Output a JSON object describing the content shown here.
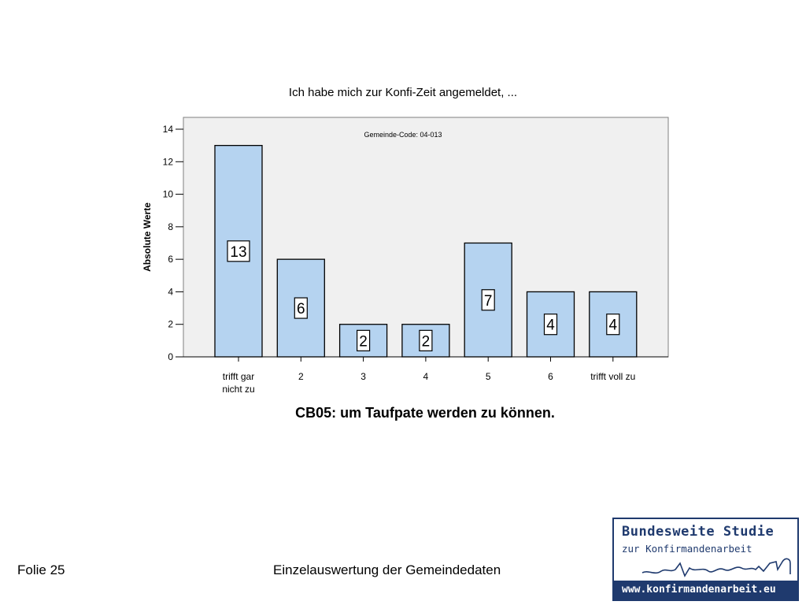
{
  "chart_data": {
    "type": "bar",
    "title": "Ich habe mich zur Konfi-Zeit angemeldet, ...",
    "subtitle": "CB05: um Taufpate werden zu können.",
    "annotation": "Gemeinde-Code: 04-013",
    "ylabel": "Absolute Werte",
    "xlabel": "",
    "ylim": [
      0,
      14
    ],
    "yticks": [
      0,
      2,
      4,
      6,
      8,
      10,
      12,
      14
    ],
    "categories": [
      [
        "trifft gar",
        "nicht zu"
      ],
      [
        "2"
      ],
      [
        "3"
      ],
      [
        "4"
      ],
      [
        "5"
      ],
      [
        "6"
      ],
      [
        "trifft voll zu"
      ]
    ],
    "values": [
      13,
      6,
      2,
      2,
      7,
      4,
      4
    ],
    "bar_color": "#b5d3f0",
    "plot_background": "#f0f0f0",
    "grid": false
  },
  "footer": {
    "slide_label": "Folie 25",
    "caption": "Einzelauswertung der Gemeindedaten"
  },
  "logo": {
    "line1": "Bundesweite Studie",
    "line2": "zur Konfirmandenarbeit",
    "url": "www.konfirmandenarbeit.eu",
    "color": "#1f3a6e"
  }
}
